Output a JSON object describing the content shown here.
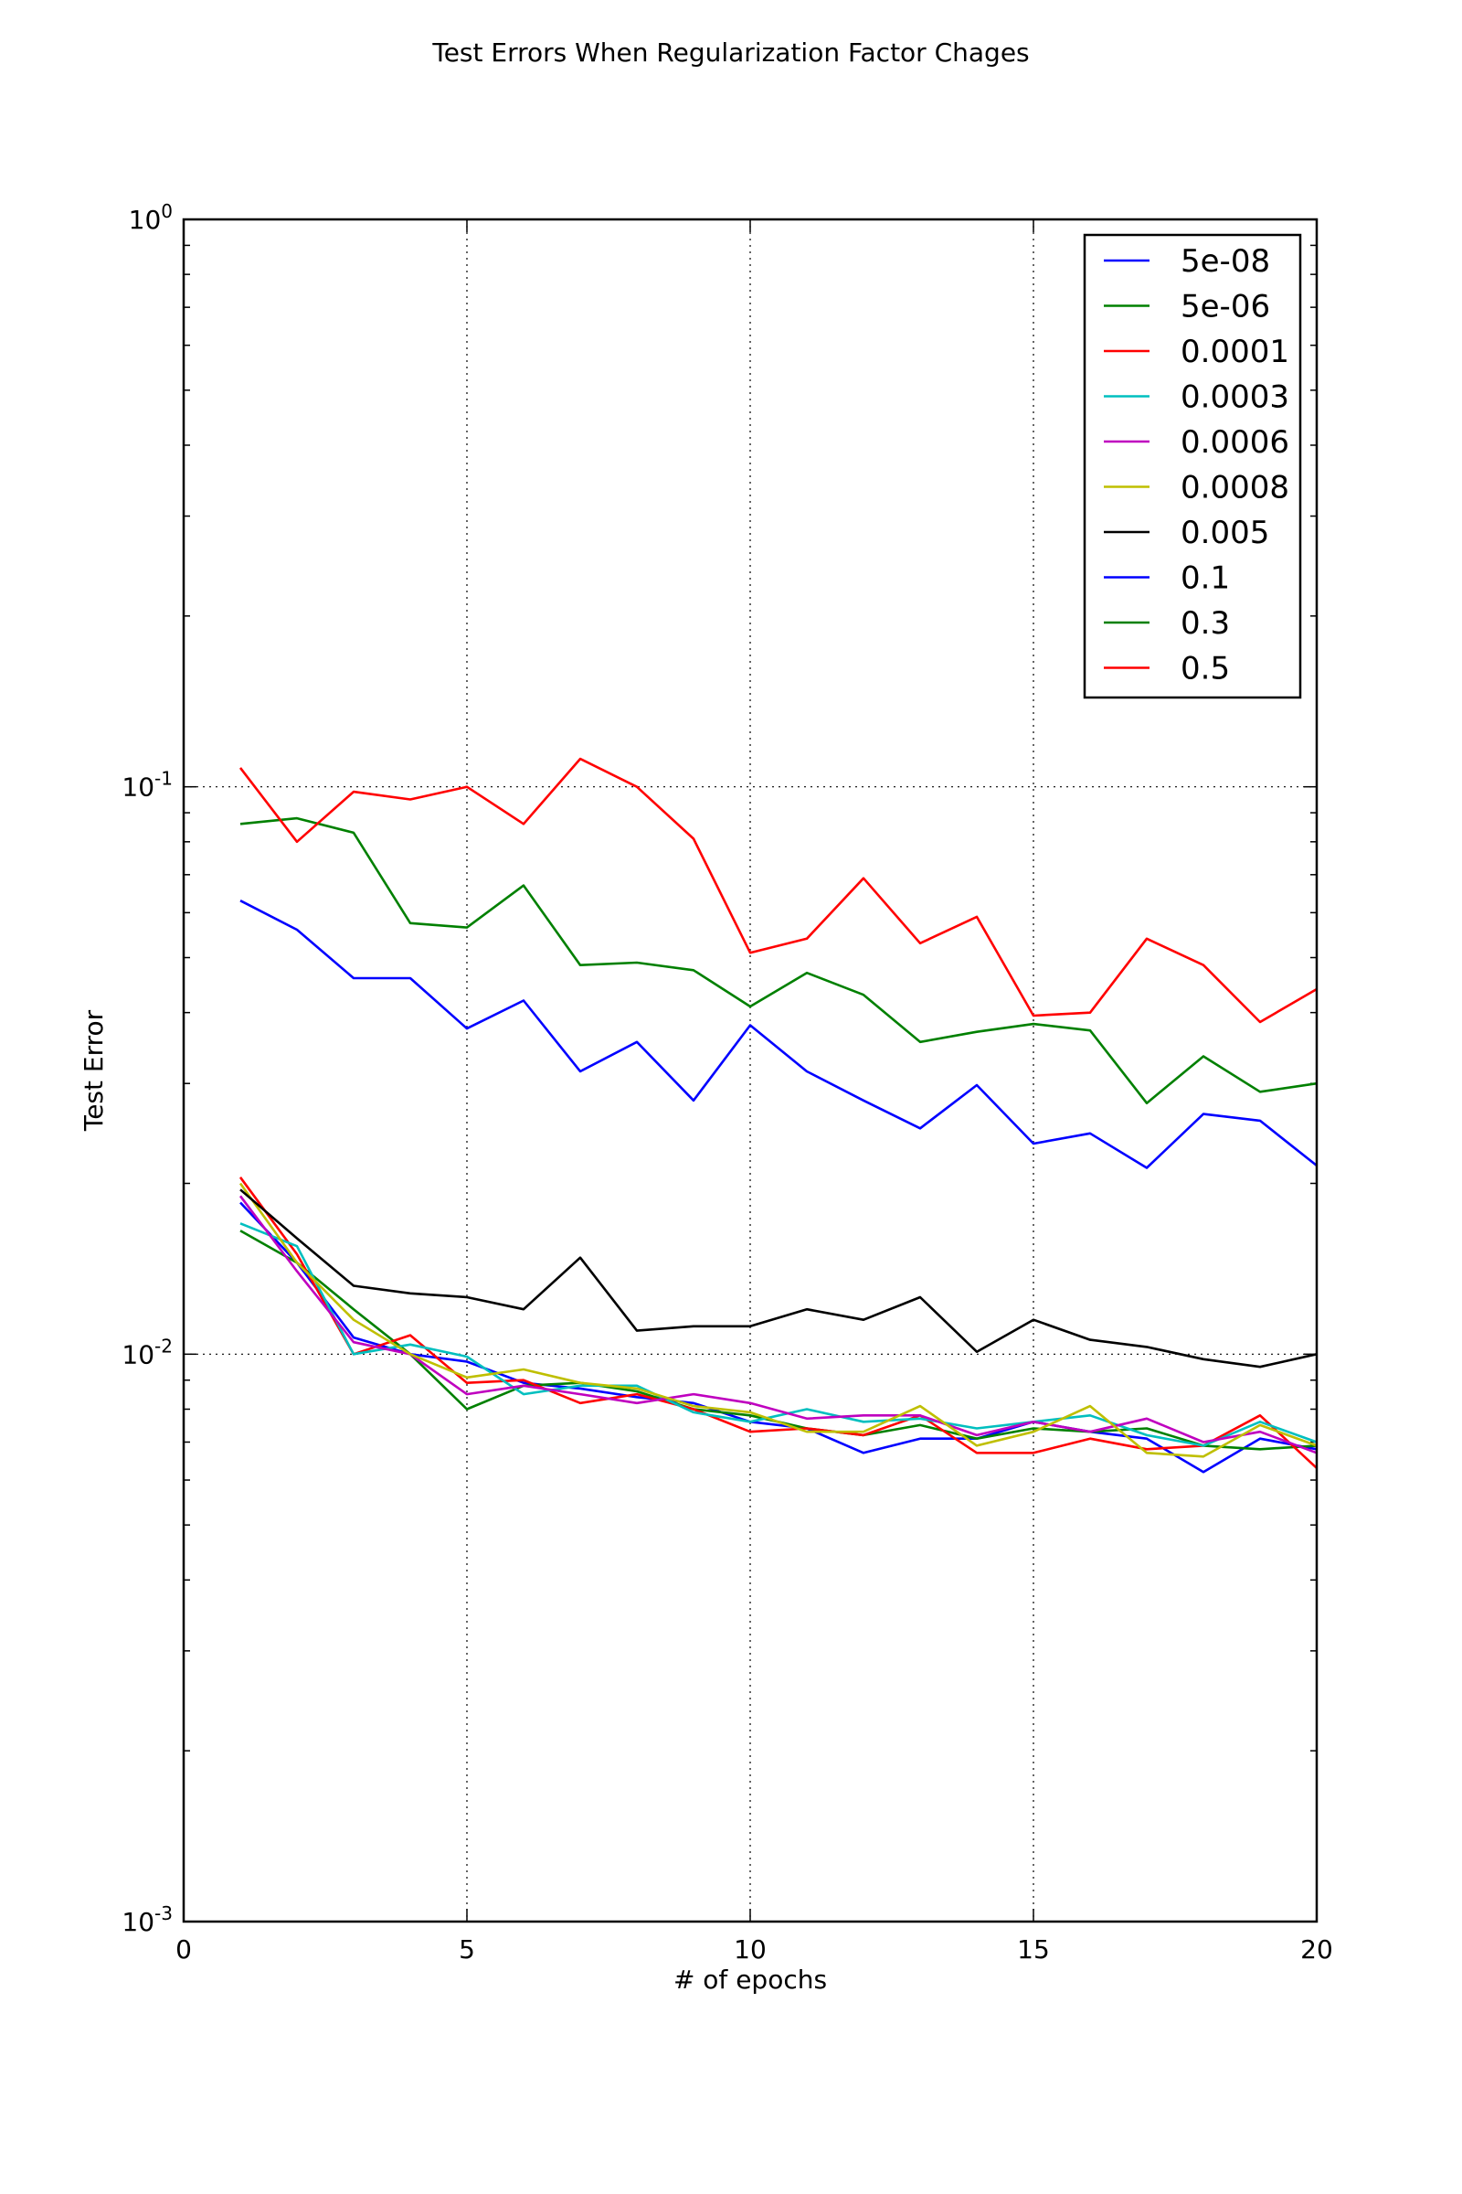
{
  "chart_data": {
    "type": "line",
    "title": "Test Errors When Regularization Factor Chages",
    "xlabel": "# of epochs",
    "ylabel": "Test Error",
    "xlim": [
      0,
      20
    ],
    "ylim": [
      0.001,
      1
    ],
    "yscale": "log",
    "grid": true,
    "legend_position": "top-right",
    "x_ticks": [
      0,
      5,
      10,
      15,
      20
    ],
    "x_tick_labels": [
      "0",
      "5",
      "10",
      "15",
      "20"
    ],
    "y_ticks": [
      1,
      0.1,
      0.01,
      0.001
    ],
    "y_tick_labels": [
      {
        "base": "10",
        "exp": "0"
      },
      {
        "base": "10",
        "exp": "-1"
      },
      {
        "base": "10",
        "exp": "-2"
      },
      {
        "base": "10",
        "exp": "-3"
      }
    ],
    "x": [
      1,
      2,
      3,
      4,
      5,
      6,
      7,
      8,
      9,
      10,
      11,
      12,
      13,
      14,
      15,
      16,
      17,
      18,
      19,
      20
    ],
    "series": [
      {
        "name": "5e-08",
        "color": "#0000ff",
        "values": [
          0.0185,
          0.0145,
          0.0107,
          0.01,
          0.0097,
          0.0089,
          0.0087,
          0.0084,
          0.0082,
          0.0076,
          0.0074,
          0.0067,
          0.0071,
          0.0071,
          0.0076,
          0.0073,
          0.0071,
          0.0062,
          0.0071,
          0.0068
        ]
      },
      {
        "name": "5e-06",
        "color": "#008000",
        "values": [
          0.0165,
          0.0145,
          0.012,
          0.01,
          0.008,
          0.0088,
          0.0089,
          0.0086,
          0.008,
          0.0078,
          0.0074,
          0.0072,
          0.0075,
          0.0071,
          0.0074,
          0.0073,
          0.0074,
          0.0069,
          0.0068,
          0.0069
        ]
      },
      {
        "name": "0.0001",
        "color": "#ff0000",
        "values": [
          0.0205,
          0.015,
          0.01,
          0.0108,
          0.0089,
          0.009,
          0.0082,
          0.0085,
          0.008,
          0.0073,
          0.0074,
          0.0072,
          0.0078,
          0.0067,
          0.0067,
          0.0071,
          0.0068,
          0.0069,
          0.0078,
          0.0063
        ]
      },
      {
        "name": "0.0003",
        "color": "#00bfbf",
        "values": [
          0.017,
          0.0155,
          0.01,
          0.0104,
          0.0099,
          0.0085,
          0.0088,
          0.0088,
          0.0079,
          0.0076,
          0.008,
          0.0076,
          0.0077,
          0.0074,
          0.0076,
          0.0078,
          0.0072,
          0.0069,
          0.0076,
          0.007
        ]
      },
      {
        "name": "0.0006",
        "color": "#bf00bf",
        "values": [
          0.019,
          0.014,
          0.0105,
          0.01,
          0.0085,
          0.0088,
          0.0085,
          0.0082,
          0.0085,
          0.0082,
          0.0077,
          0.0078,
          0.0078,
          0.0072,
          0.0076,
          0.0073,
          0.0077,
          0.007,
          0.0073,
          0.0067
        ]
      },
      {
        "name": "0.0008",
        "color": "#bfbf00",
        "values": [
          0.02,
          0.0145,
          0.0115,
          0.01,
          0.0091,
          0.0094,
          0.0089,
          0.0087,
          0.0081,
          0.0079,
          0.0073,
          0.0073,
          0.0081,
          0.0069,
          0.0073,
          0.0081,
          0.0067,
          0.0066,
          0.0075,
          0.0069
        ]
      },
      {
        "name": "0.005",
        "color": "#000000",
        "values": [
          0.0195,
          0.016,
          0.0132,
          0.0128,
          0.0126,
          0.012,
          0.0148,
          0.011,
          0.0112,
          0.0112,
          0.012,
          0.0115,
          0.0126,
          0.0101,
          0.0115,
          0.0106,
          0.0103,
          0.0098,
          0.0095,
          0.01
        ]
      },
      {
        "name": "0.1",
        "color": "#0000ff",
        "values": [
          0.063,
          0.056,
          0.046,
          0.046,
          0.0375,
          0.042,
          0.0315,
          0.0355,
          0.028,
          0.038,
          0.0315,
          0.028,
          0.025,
          0.0298,
          0.0235,
          0.0245,
          0.0213,
          0.0265,
          0.0258,
          0.0215
        ]
      },
      {
        "name": "0.3",
        "color": "#008000",
        "values": [
          0.086,
          0.088,
          0.083,
          0.0575,
          0.0565,
          0.067,
          0.0485,
          0.049,
          0.0475,
          0.041,
          0.047,
          0.043,
          0.0355,
          0.037,
          0.0382,
          0.0372,
          0.0277,
          0.0335,
          0.029,
          0.03
        ]
      },
      {
        "name": "0.5",
        "color": "#ff0000",
        "values": [
          0.108,
          0.08,
          0.098,
          0.095,
          0.1,
          0.086,
          0.112,
          0.1,
          0.081,
          0.051,
          0.054,
          0.069,
          0.053,
          0.059,
          0.0395,
          0.04,
          0.054,
          0.0485,
          0.0385,
          0.044
        ]
      }
    ]
  }
}
